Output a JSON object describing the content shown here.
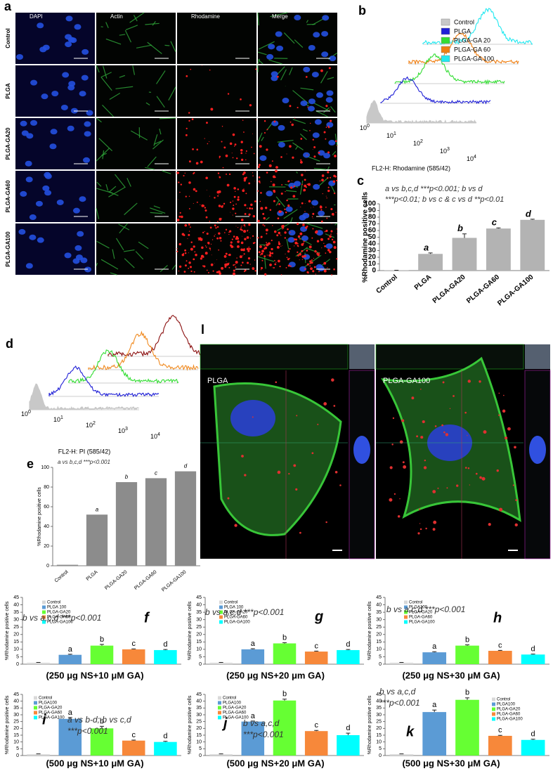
{
  "microscopy": {
    "panel": "a",
    "columns": [
      "DAPI",
      "Actin",
      "Rhodamine",
      "Merge"
    ],
    "rows": [
      "Control",
      "PLGA",
      "PLGA-GA20",
      "PLGA-GA60",
      "PLGA-GA100"
    ]
  },
  "flow_b": {
    "panel": "b",
    "legend": [
      {
        "name": "Control",
        "color": "#c8c8c8"
      },
      {
        "name": "PLGA",
        "color": "#1f1fd6"
      },
      {
        "name": "PLGA-GA 20",
        "color": "#33dd33"
      },
      {
        "name": "PLGA-GA 60",
        "color": "#f07e10"
      },
      {
        "name": "PLGA-GA 100",
        "color": "#22e8f0"
      }
    ],
    "xticks": [
      {
        "base": "10",
        "exp": "0"
      },
      {
        "base": "10",
        "exp": "1"
      },
      {
        "base": "10",
        "exp": "2"
      },
      {
        "base": "10",
        "exp": "3"
      },
      {
        "base": "10",
        "exp": "4"
      }
    ],
    "xlabel": "FL2-H: Rhodamine (585/42)"
  },
  "flow_d": {
    "panel": "d",
    "colors": [
      "#c8c8c8",
      "#1f1fd6",
      "#33dd33",
      "#f08a20",
      "#8b1010"
    ],
    "xticks": [
      {
        "base": "10",
        "exp": "0"
      },
      {
        "base": "10",
        "exp": "1"
      },
      {
        "base": "10",
        "exp": "2"
      },
      {
        "base": "10",
        "exp": "3"
      },
      {
        "base": "10",
        "exp": "4"
      }
    ],
    "xlabel": "FL2-H: PI (585/42)"
  },
  "confocal": {
    "panel": "l",
    "labels": [
      "PLGA",
      "PLGA-GA100"
    ]
  },
  "chart_data": [
    {
      "type": "bar",
      "panel": "c",
      "categories": [
        "Control",
        "PLGA",
        "PLGA-GA20",
        "PLGA-GA60",
        "PLGA-GA100"
      ],
      "values": [
        0.5,
        25,
        49,
        63,
        76
      ],
      "errors": [
        0,
        1.5,
        6,
        1,
        1
      ],
      "color": "#b3b3b3",
      "letters": [
        "a",
        "b",
        "c",
        "d"
      ],
      "annotation": [
        "a vs b,c,d ***p<0.001; b vs d",
        "***p<0.01; b vs c & c vs d **p<0.01"
      ],
      "ylabel": "%Rhodamine positive cells",
      "ylim": [
        0,
        100
      ],
      "yticks": [
        0,
        10,
        20,
        30,
        40,
        50,
        60,
        70,
        80,
        90,
        100
      ]
    },
    {
      "type": "bar",
      "panel": "e",
      "categories": [
        "Control",
        "PLGA",
        "PLGA-GA20",
        "PLGA-GA60",
        "PLGA-GA100"
      ],
      "values": [
        1,
        52,
        85,
        89,
        96
      ],
      "color": "#8c8c8c",
      "letters": [
        "a",
        "b",
        "c",
        "d"
      ],
      "annotation": [
        "a vs b,c,d ***p<0.001"
      ],
      "ylabel": "%Rhodamine positive cells",
      "ylim": [
        0,
        100
      ],
      "yticks": [
        0,
        20,
        40,
        60,
        80,
        100
      ]
    },
    {
      "type": "bar",
      "panel": "f",
      "categories": [
        "Control",
        "PLGA 100",
        "PLGA-GA20",
        "PLGA-GA60",
        "PLGA-GA100"
      ],
      "values": [
        1,
        6.3,
        12.5,
        10,
        9.5
      ],
      "errors": [
        0.2,
        0.4,
        0.8,
        0.3,
        0.4
      ],
      "colors": [
        "#d9d9d9",
        "#5b9bd5",
        "#66ff33",
        "#f7883a",
        "#00ffff"
      ],
      "letters": [
        "a",
        "b",
        "c",
        "d"
      ],
      "annotation": [
        "b vs a,c,d ***p<0.001"
      ],
      "ylabel": "%Rhodamine positive cells",
      "xlabel": "(250 μg NS+10 μM GA)",
      "ylim": [
        0,
        45
      ],
      "yticks": [
        0,
        5,
        10,
        15,
        20,
        25,
        30,
        35,
        40,
        45
      ]
    },
    {
      "type": "bar",
      "panel": "g",
      "categories": [
        "Control",
        "PLGA 100",
        "PLGA-GA20",
        "PLGA-GA60",
        "PLGA-GA100"
      ],
      "values": [
        1,
        10,
        14,
        8.5,
        9.5
      ],
      "errors": [
        0.2,
        0.4,
        0.5,
        0.3,
        0.4
      ],
      "colors": [
        "#d9d9d9",
        "#5b9bd5",
        "#66ff33",
        "#f7883a",
        "#00ffff"
      ],
      "letters": [
        "a",
        "b",
        "c",
        "d"
      ],
      "annotation": [
        "b vs a,c,d ***p<0.001"
      ],
      "ylabel": "%Rhodamine positive cells",
      "xlabel": "(250 μg NS+20 μm GA)",
      "ylim": [
        0,
        45
      ],
      "yticks": [
        0,
        5,
        10,
        15,
        20,
        25,
        30,
        35,
        40,
        45
      ]
    },
    {
      "type": "bar",
      "panel": "h",
      "categories": [
        "Control",
        "PLGA100",
        "PLGA-GA20",
        "PLGA-GA60",
        "PLGA-GA100"
      ],
      "values": [
        1,
        8,
        12.5,
        9,
        6.5
      ],
      "errors": [
        0.2,
        0.4,
        0.5,
        0.3,
        0.3
      ],
      "colors": [
        "#d9d9d9",
        "#5b9bd5",
        "#66ff33",
        "#f7883a",
        "#00ffff"
      ],
      "letters": [
        "a",
        "b",
        "c",
        "d"
      ],
      "annotation": [
        "b vs a,c,d ***p<0.001"
      ],
      "ylabel": "%Rhodamine positive cells",
      "xlabel": "(250 μg NS+30 μM GA)",
      "ylim": [
        0,
        45
      ],
      "yticks": [
        0,
        5,
        10,
        15,
        20,
        25,
        30,
        35,
        40,
        45
      ]
    },
    {
      "type": "bar",
      "panel": "i",
      "categories": [
        "Control",
        "PLGA100",
        "PLGA-GA20",
        "PLGA-GA60",
        "PLGA-GA100"
      ],
      "values": [
        1,
        27,
        20,
        11,
        10
      ],
      "errors": [
        0.2,
        1,
        1.5,
        0.4,
        0.5
      ],
      "colors": [
        "#d9d9d9",
        "#5b9bd5",
        "#66ff33",
        "#f7883a",
        "#00ffff"
      ],
      "letters": [
        "a",
        "b",
        "c",
        "d"
      ],
      "annotation": [
        "a vs b-d; b vs c,d",
        "***p<0.001"
      ],
      "ylabel": "%Rhodamine positive cells",
      "xlabel": "(500 μg NS+10 μM GA)",
      "ylim": [
        0,
        45
      ],
      "yticks": [
        0,
        5,
        10,
        15,
        20,
        25,
        30,
        35,
        40,
        45
      ]
    },
    {
      "type": "bar",
      "panel": "j",
      "categories": [
        "Control",
        "PLGA100",
        "PLGA-GA20",
        "PLGA-GA60",
        "PLGA-GA100"
      ],
      "values": [
        1,
        25,
        40.5,
        18,
        15
      ],
      "errors": [
        0.2,
        0.4,
        1,
        0.5,
        1.5
      ],
      "colors": [
        "#d9d9d9",
        "#5b9bd5",
        "#66ff33",
        "#f7883a",
        "#00ffff"
      ],
      "letters": [
        "a",
        "b",
        "c",
        "d"
      ],
      "annotation": [
        "b vs a,c,d",
        "***p<0.001"
      ],
      "ylabel": "%Rhodamine positive cells",
      "xlabel": "(500 μg NS+20 μM GA)",
      "ylim": [
        0,
        45
      ],
      "yticks": [
        0,
        5,
        10,
        15,
        20,
        25,
        30,
        35,
        40,
        45
      ]
    },
    {
      "type": "bar",
      "panel": "k",
      "categories": [
        "Control",
        "PLGA100",
        "PLGA-GA20",
        "PLGA-GA60",
        "PLGA-GA100"
      ],
      "values": [
        1,
        32,
        41,
        14.5,
        11.5
      ],
      "errors": [
        0.2,
        1.5,
        1.5,
        0.4,
        0.5
      ],
      "colors": [
        "#d9d9d9",
        "#5b9bd5",
        "#66ff33",
        "#f7883a",
        "#00ffff"
      ],
      "letters": [
        "a",
        "b",
        "c",
        "d"
      ],
      "annotation": [
        "b vs a,c,d",
        "***p<0.001"
      ],
      "ylabel": "%Rhodamine positive cells",
      "xlabel": "(500 μg NS+30 μM GA)",
      "ylim": [
        0,
        45
      ],
      "yticks": [
        0,
        5,
        10,
        15,
        20,
        25,
        30,
        35,
        40,
        45
      ]
    }
  ]
}
